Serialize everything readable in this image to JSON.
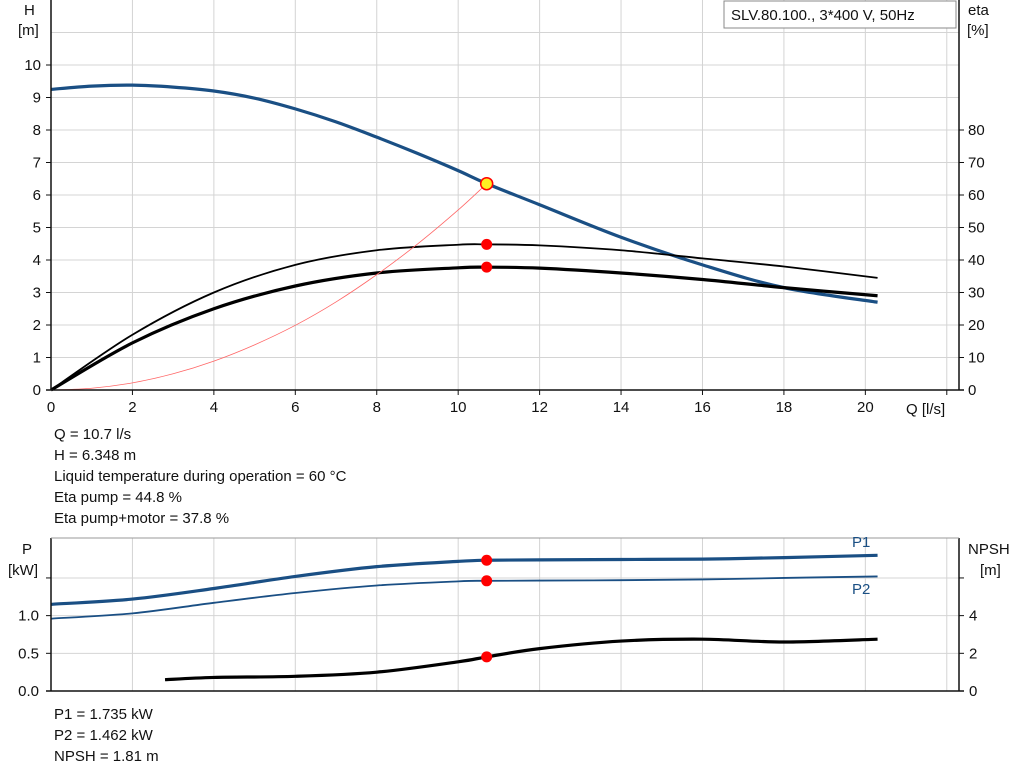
{
  "chart_data": [
    {
      "type": "line",
      "title": "SLV.80.100., 3*400 V, 50Hz",
      "xlabel": "Q [l/s]",
      "ylabel_left": [
        "H",
        "[m]"
      ],
      "ylabel_right": [
        "eta",
        "[%]"
      ],
      "xlim": [
        0,
        22.3
      ],
      "ylim_left": [
        0,
        12
      ],
      "ylim_right": [
        0,
        120
      ],
      "x_ticks": [
        0,
        2,
        4,
        6,
        8,
        10,
        12,
        14,
        16,
        18,
        20
      ],
      "y_ticks_left": [
        0,
        1,
        2,
        3,
        4,
        5,
        6,
        7,
        8,
        9,
        10
      ],
      "y_ticks_right": [
        0,
        10,
        20,
        30,
        40,
        50,
        60,
        70,
        80
      ],
      "grid": true,
      "series": [
        {
          "axis": "left",
          "color": "#1a4f84",
          "x": [
            0,
            1,
            2,
            3,
            4,
            5,
            6,
            7,
            8,
            9,
            10,
            10.7,
            12,
            14,
            16,
            18,
            20.3
          ],
          "y": [
            9.25,
            9.35,
            9.38,
            9.32,
            9.2,
            8.98,
            8.65,
            8.25,
            7.78,
            7.28,
            6.75,
            6.35,
            5.7,
            4.7,
            3.85,
            3.15,
            2.7
          ]
        },
        {
          "axis": "right",
          "color": "#000000",
          "x": [
            0,
            2,
            4,
            6,
            8,
            10,
            10.7,
            12,
            14,
            16,
            18,
            20.3
          ],
          "y": [
            0,
            17,
            30,
            38.5,
            43,
            44.7,
            44.8,
            44.5,
            43,
            40.5,
            38,
            34.5
          ]
        },
        {
          "axis": "right",
          "color": "#000000",
          "x": [
            0,
            2,
            4,
            6,
            8,
            10,
            10.7,
            12,
            14,
            16,
            18,
            20.3
          ],
          "y": [
            0,
            14.5,
            25,
            32,
            36,
            37.6,
            37.8,
            37.5,
            36,
            34,
            31.5,
            29
          ]
        },
        {
          "axis": "left",
          "color": "#ff6666",
          "x": [
            0,
            1,
            2,
            3,
            4,
            5,
            6,
            7,
            8,
            9,
            10,
            10.7
          ],
          "y": [
            0,
            0.055,
            0.22,
            0.5,
            0.89,
            1.39,
            1.99,
            2.71,
            3.55,
            4.49,
            5.54,
            6.348
          ]
        }
      ],
      "operating_point": {
        "Q": 10.7,
        "H": 6.348,
        "eta_pump": 44.8,
        "eta_pump_motor": 37.8
      },
      "annotations": [
        "Q = 10.7 l/s",
        "H = 6.348 m",
        "Liquid temperature during operation = 60 °C",
        "Eta pump = 44.8 %",
        "Eta pump+motor = 37.8 %"
      ]
    },
    {
      "type": "line",
      "ylabel_left": [
        "P",
        "[kW]"
      ],
      "ylabel_right": [
        "NPSH",
        "[m]"
      ],
      "xlim": [
        0,
        22.3
      ],
      "ylim_left": [
        0,
        2.03
      ],
      "ylim_right": [
        0,
        8.12
      ],
      "y_ticks_left": [
        "0.0",
        "0.5",
        "1.0"
      ],
      "y_ticks_right": [
        "0",
        "2",
        "4"
      ],
      "grid": true,
      "series": [
        {
          "name": "P1",
          "axis": "left",
          "color": "#1a4f84",
          "x": [
            0,
            2,
            4,
            6,
            8,
            10,
            10.7,
            12,
            14,
            16,
            18,
            20.3
          ],
          "y": [
            1.15,
            1.22,
            1.36,
            1.52,
            1.65,
            1.72,
            1.735,
            1.74,
            1.745,
            1.75,
            1.77,
            1.8
          ]
        },
        {
          "name": "P2",
          "axis": "left",
          "color": "#1a4f84",
          "x": [
            0,
            2,
            4,
            6,
            8,
            10,
            10.7,
            12,
            14,
            16,
            18,
            20.3
          ],
          "y": [
            0.96,
            1.03,
            1.17,
            1.3,
            1.4,
            1.455,
            1.462,
            1.465,
            1.47,
            1.48,
            1.5,
            1.52
          ]
        },
        {
          "axis": "right",
          "color": "#000000",
          "x": [
            2.8,
            4,
            6,
            8,
            10,
            10.7,
            12,
            14,
            16,
            18,
            20.3
          ],
          "y": [
            0.6,
            0.72,
            0.78,
            1.0,
            1.55,
            1.81,
            2.25,
            2.65,
            2.75,
            2.6,
            2.75
          ]
        }
      ],
      "operating_point": {
        "P1": 1.735,
        "P2": 1.462,
        "NPSH": 1.81
      },
      "annotations": [
        "P1 = 1.735 kW",
        "P2 = 1.462 kW",
        "NPSH = 1.81 m"
      ]
    }
  ]
}
